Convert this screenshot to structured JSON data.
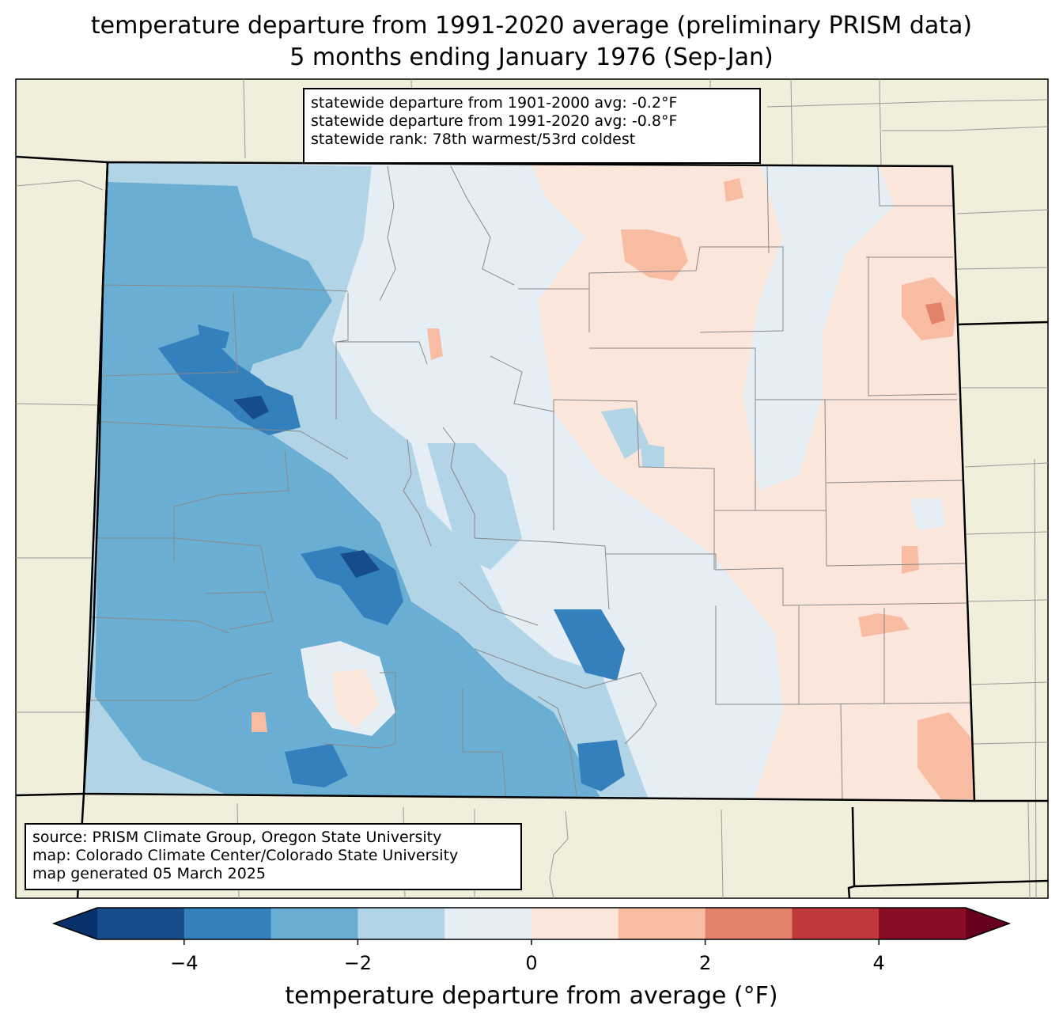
{
  "title": {
    "line1": "temperature departure from 1991-2020 average (preliminary PRISM data)",
    "line2": "5 months ending January 1976 (Sep-Jan)"
  },
  "stats": {
    "line1": "statewide departure from 1901-2000 avg: -0.2°F",
    "line2": "statewide departure from 1991-2020 avg: -0.8°F",
    "line3": "statewide rank: 78th warmest/53rd coldest"
  },
  "source": {
    "line1": "source: PRISM Climate Group, Oregon State University",
    "line2": "map: Colorado Climate Center/Colorado State University",
    "line3": "map generated 05 March 2025"
  },
  "colorbar": {
    "label": "temperature departure from average (°F)",
    "ticks": [
      "−4",
      "−2",
      "0",
      "2",
      "4"
    ],
    "tick_values": [
      -4,
      -2,
      0,
      2,
      4
    ],
    "range": [
      -5,
      5
    ],
    "step": 1,
    "colors": [
      "#08306b",
      "#154c89",
      "#3380bd",
      "#6aaed4",
      "#b2d4e7",
      "#e6eef5",
      "#fbe6dc",
      "#f8bca2",
      "#e3826b",
      "#c0383b",
      "#870c24",
      "#67001f"
    ]
  },
  "map_colors": {
    "background": "#f0efdc",
    "state_border": "#000000",
    "county_line": "#888888"
  }
}
